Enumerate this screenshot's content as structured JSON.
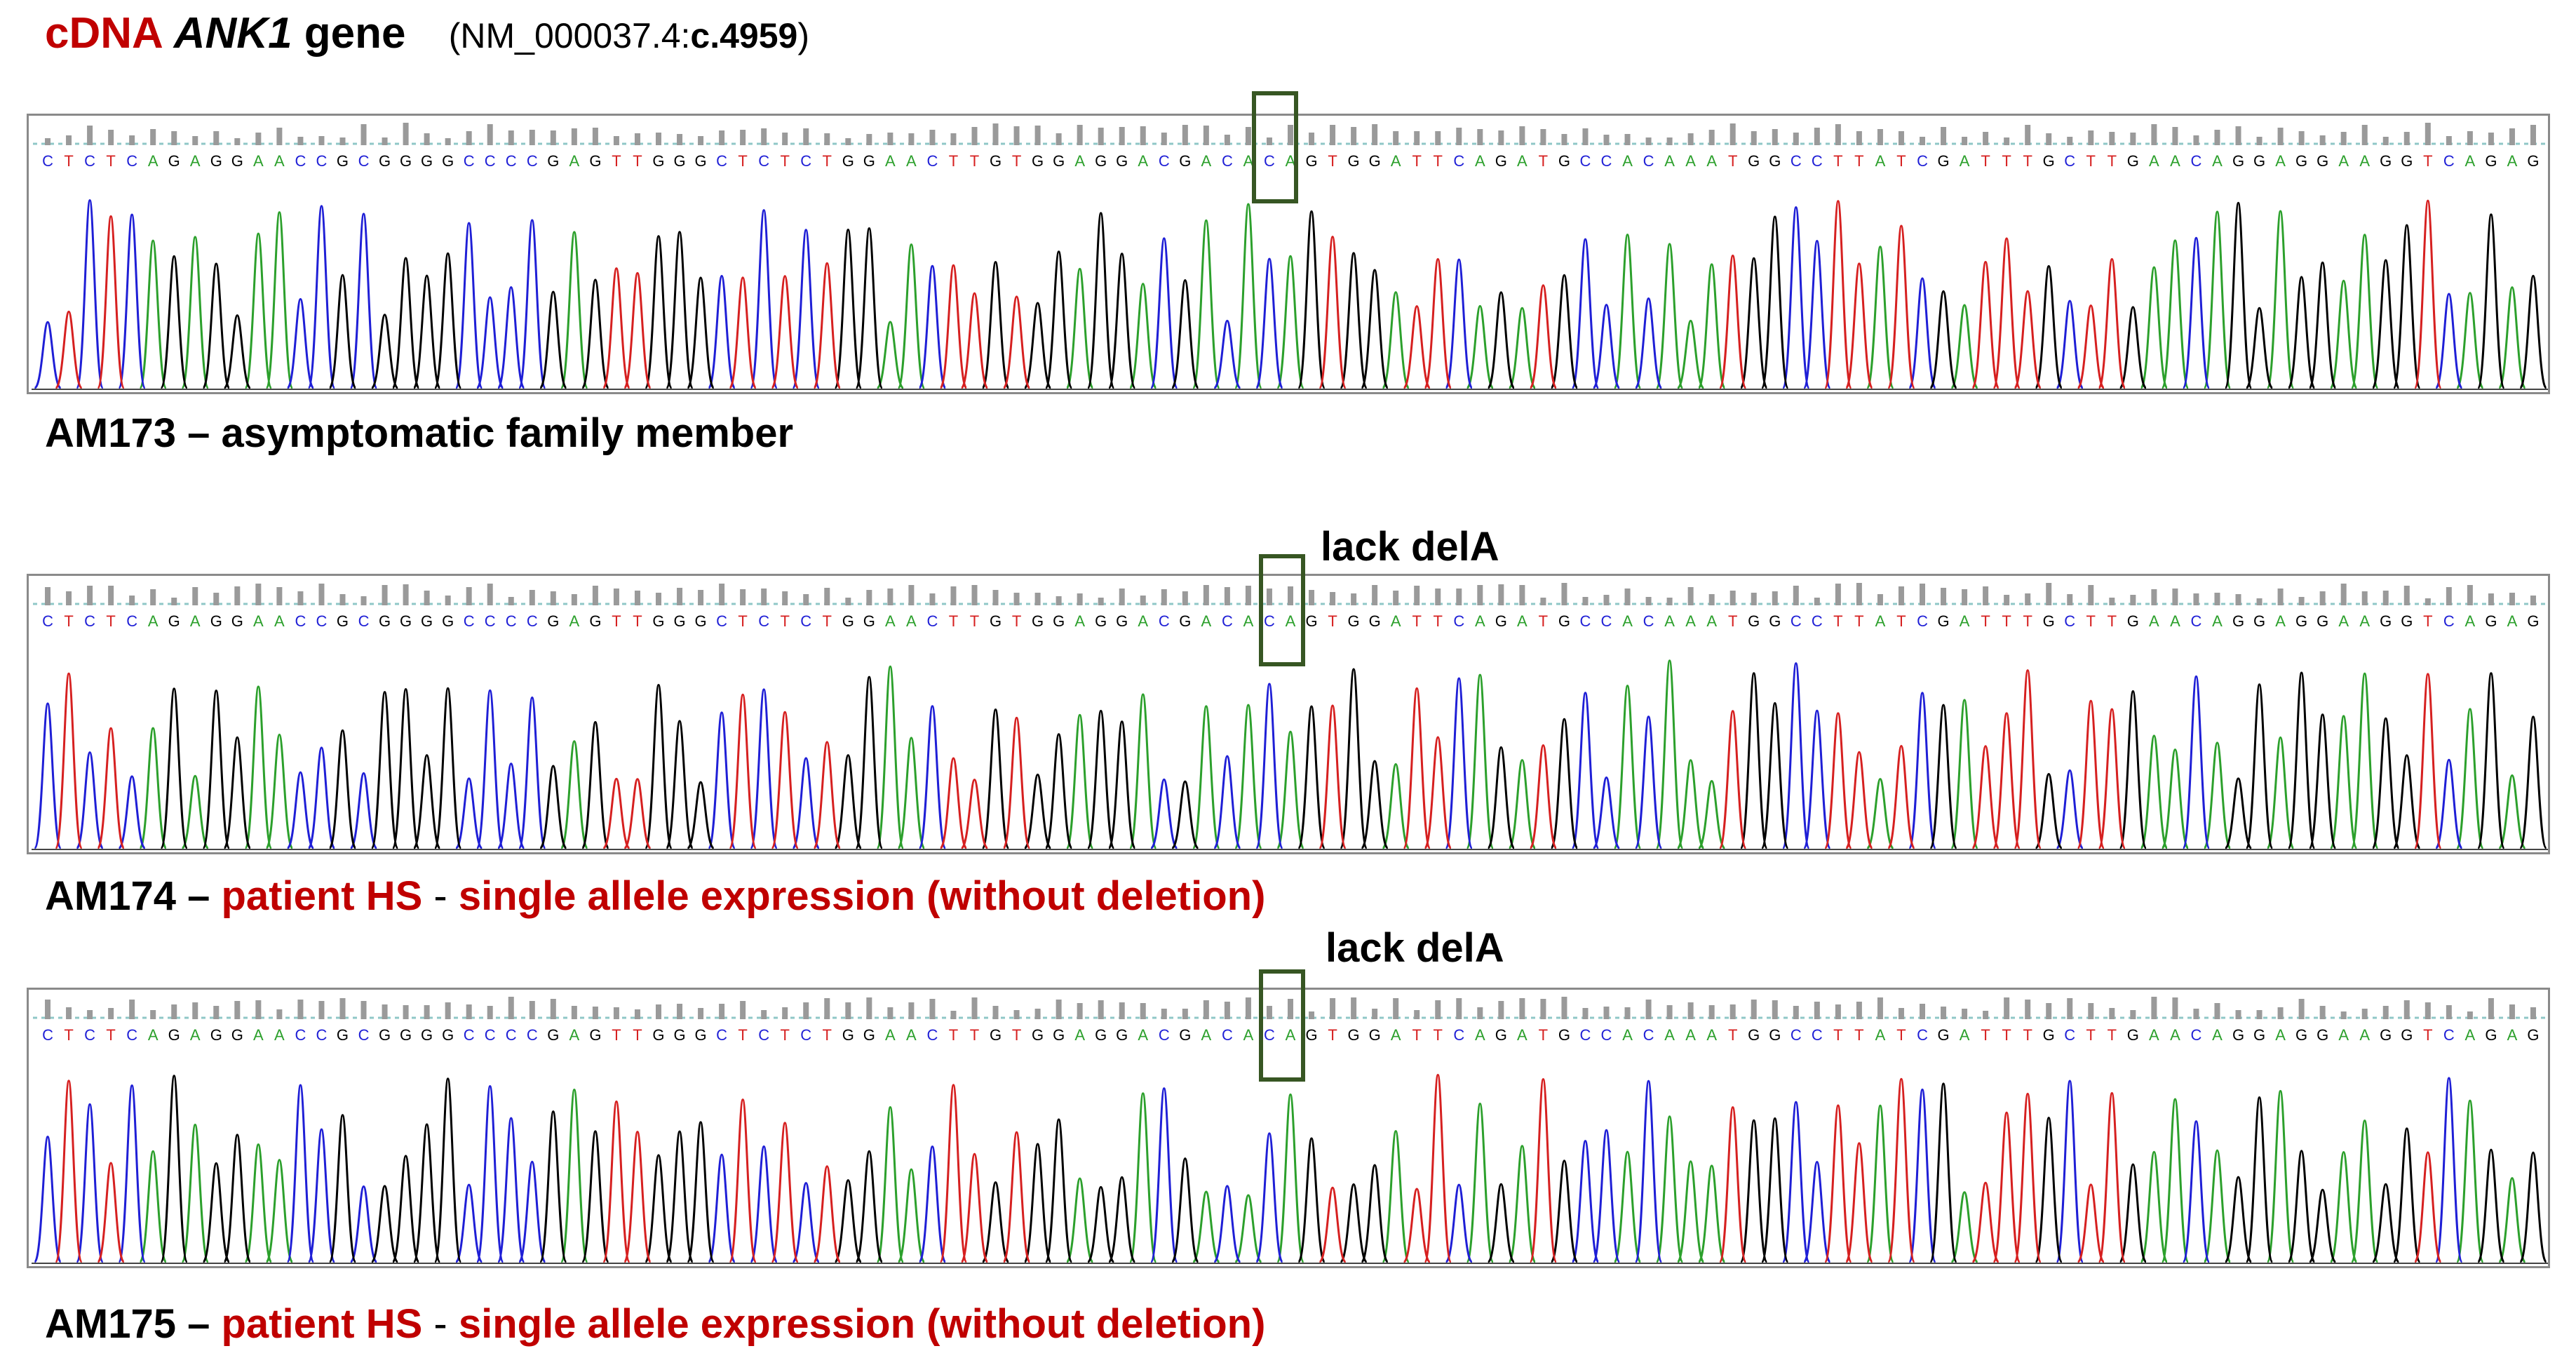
{
  "title": {
    "cdna": "cDNA",
    "gene": "ANK1",
    "gene_word": "gene",
    "ref_open": "(NM_000037.4:",
    "ref_variant": "c.4959",
    "ref_close": ")"
  },
  "sequence": "CTCTCAGAGGAACCGCGGGGCCCCGAGTTGGGCTCTCTGGAACTTGTGGAGGACGACACAGTGGATTCAGATGCCACAAATGGCCTTATCGATTTGCTTGAACAGGAGGAAGGTCAGAG",
  "base_colors": {
    "A": "#2ca02c",
    "C": "#1f1fd6",
    "G": "#000000",
    "T": "#d62020"
  },
  "highlight_index": 60,
  "panels": [
    {
      "sample": "AM173",
      "separator": " – ",
      "description": "asymptomatic family member",
      "note": ""
    },
    {
      "sample": "AM174",
      "separator": " – ",
      "description_red_1": "patient HS",
      "dash": " - ",
      "description_red_2": "single allele expression (without deletion)",
      "note": "lack delA"
    },
    {
      "sample": "AM175",
      "separator": " – ",
      "description_red_1": "patient HS",
      "dash": " - ",
      "description_red_2": "single allele expression (without deletion)",
      "note": "lack delA"
    }
  ]
}
